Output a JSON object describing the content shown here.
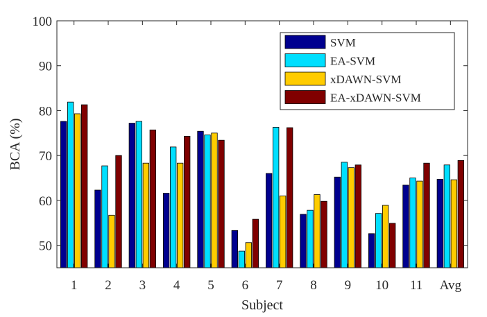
{
  "chart_data": {
    "type": "bar",
    "title": "",
    "xlabel": "Subject",
    "ylabel": "BCA (%)",
    "ylim": [
      45,
      100
    ],
    "yticks": [
      50,
      60,
      70,
      80,
      90,
      100
    ],
    "grid": false,
    "legend_position": "top-right",
    "categories": [
      "1",
      "2",
      "3",
      "4",
      "5",
      "6",
      "7",
      "8",
      "9",
      "10",
      "11",
      "Avg"
    ],
    "series": [
      {
        "name": "SVM",
        "color": "#00008f",
        "values": [
          77.6,
          62.3,
          77.2,
          61.6,
          75.4,
          53.3,
          66.0,
          56.9,
          65.2,
          52.6,
          63.4,
          64.7
        ]
      },
      {
        "name": "EA-SVM",
        "color": "#00dfff",
        "values": [
          81.9,
          67.7,
          77.6,
          71.9,
          74.6,
          48.7,
          76.3,
          57.8,
          68.5,
          57.1,
          65.0,
          67.9
        ]
      },
      {
        "name": "xDAWN-SVM",
        "color": "#ffcc00",
        "values": [
          79.3,
          56.7,
          68.3,
          68.3,
          75.0,
          50.6,
          61.0,
          61.3,
          67.3,
          58.9,
          64.3,
          64.6
        ]
      },
      {
        "name": "EA-xDAWN-SVM",
        "color": "#800000",
        "values": [
          81.3,
          70.0,
          75.7,
          74.3,
          73.4,
          55.8,
          76.2,
          59.8,
          67.9,
          54.9,
          68.3,
          68.9
        ]
      }
    ]
  }
}
